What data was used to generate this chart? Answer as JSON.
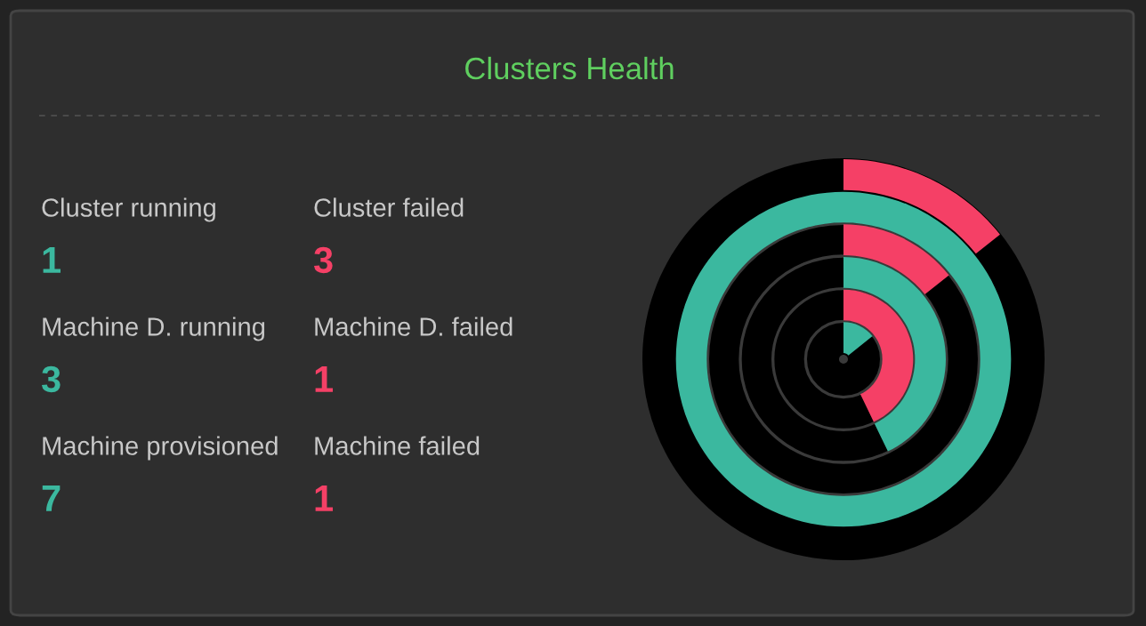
{
  "chart_data": {
    "type": "other",
    "title": "Clusters Health",
    "categories": [
      "Cluster running",
      "Cluster failed",
      "Machine D. running",
      "Machine D. failed",
      "Machine provisioned",
      "Machine failed"
    ],
    "values": [
      1,
      3,
      3,
      1,
      7,
      1
    ],
    "colors": [
      "#3bb89f",
      "#f54066",
      "#3bb89f",
      "#f54066",
      "#3bb89f",
      "#f54066"
    ],
    "data_labels": true
  }
}
